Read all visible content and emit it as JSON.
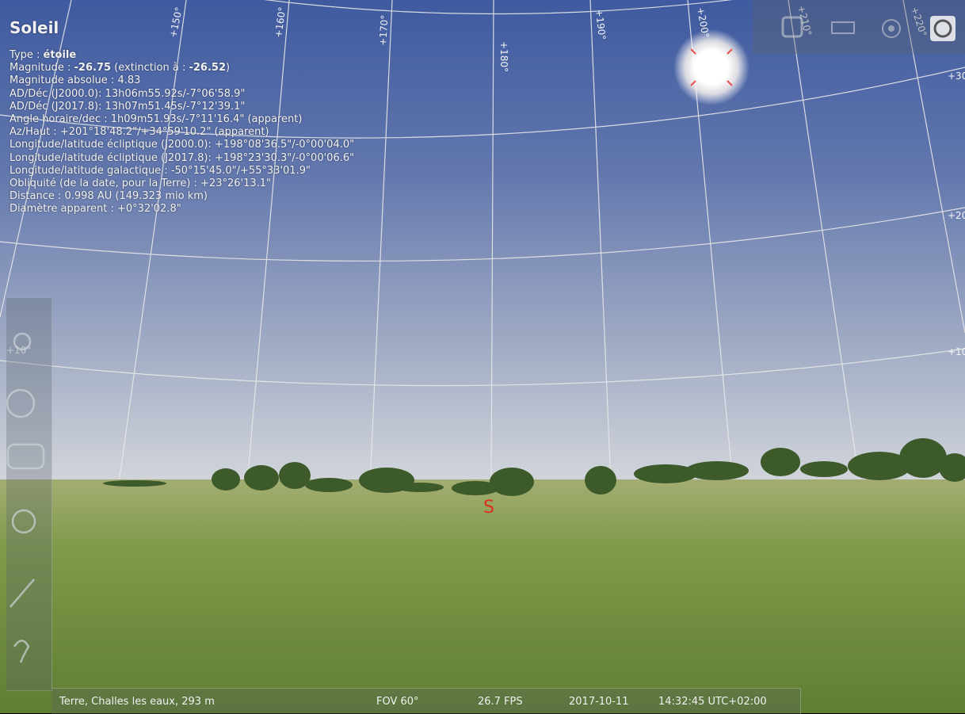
{
  "info": {
    "title": "Soleil",
    "lines": [
      [
        {
          "text": "Type : "
        },
        {
          "text": "étoile",
          "bold": true
        }
      ],
      [
        {
          "text": "Magnitude : "
        },
        {
          "text": "-26.75",
          "bold": true
        },
        {
          "text": " (extinction à : "
        },
        {
          "text": "-26.52",
          "bold": true
        },
        {
          "text": ")"
        }
      ],
      [
        {
          "text": "Magnitude absolue : 4.83"
        }
      ],
      [
        {
          "text": "AD/Déc (J2000.0): 13h06m55.92s/-7°06'58.9\""
        }
      ],
      [
        {
          "text": "AD/Déc (J2017.8): 13h07m51.45s/-7°12'39.1\""
        }
      ],
      [
        {
          "text": "Angle horaire/dec : 1h09m51.93s/-7°11'16.4\" (apparent)"
        }
      ],
      [
        {
          "text": "Az/Haut : +201°18'48.2\"/+34°59'10.2\" (apparent)"
        }
      ],
      [
        {
          "text": "Longitude/latitude écliptique (J2000.0): +198°08'36.5\"/-0°00'04.0\""
        }
      ],
      [
        {
          "text": "Longitude/latitude écliptique (J2017.8): +198°23'30.3\"/-0°00'06.6\""
        }
      ],
      [
        {
          "text": "Longitude/latitude galactique : -50°15'45.0\"/+55°33'01.9\""
        }
      ],
      [
        {
          "text": "Obliquité (de la date, pour la Terre) : +23°26'13.1\""
        }
      ],
      [
        {
          "text": "Distance : 0.998 AU (149.323 mio km)"
        }
      ],
      [
        {
          "text": "Diamètre apparent : +0°32'02.8\""
        }
      ]
    ]
  },
  "grid_labels": [
    "+150°",
    "+160°",
    "+170°",
    "+180°",
    "+190°",
    "+200°",
    "+210°",
    "+220°"
  ],
  "altitude_labels": [
    "+30",
    "+20",
    "+10",
    "+10°"
  ],
  "cardinal": "S",
  "status_bar": {
    "location": "Terre, Challes les eaux, 293 m",
    "fov": "FOV 60°",
    "fps": "26.7 FPS",
    "date": "2017-10-11",
    "time": "14:32:45 UTC+02:00"
  }
}
